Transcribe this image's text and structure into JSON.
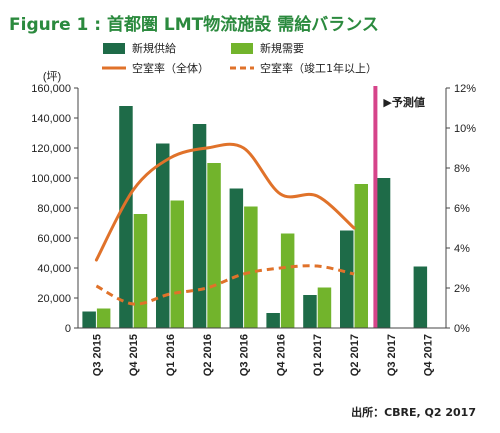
{
  "chart_data": {
    "type": "bar",
    "title": "Figure 1 : 首都圏 LMT物流施設 需給バランス",
    "left_unit": "(坪)",
    "categories": [
      "Q3 2015",
      "Q4 2015",
      "Q1 2016",
      "Q2 2016",
      "Q3 2016",
      "Q4 2016",
      "Q1 2017",
      "Q2 2017",
      "Q3 2017",
      "Q4 2017"
    ],
    "series": [
      {
        "name": "新規供給",
        "kind": "bar",
        "axis": "left",
        "color": "#1e6b48",
        "values": [
          11000,
          148000,
          123000,
          136000,
          93000,
          10000,
          22000,
          65000,
          100000,
          41000
        ]
      },
      {
        "name": "新規需要",
        "kind": "bar",
        "axis": "left",
        "color": "#72b42c",
        "values": [
          13000,
          76000,
          85000,
          110000,
          81000,
          63000,
          27000,
          96000,
          null,
          null
        ]
      },
      {
        "name": "空室率（全体）",
        "kind": "line",
        "style": "solid",
        "axis": "right",
        "color": "#e0722a",
        "values": [
          3.4,
          6.9,
          8.5,
          9.0,
          9.0,
          6.7,
          6.6,
          5.0,
          null,
          null
        ]
      },
      {
        "name": "空室率（竣工1年以上）",
        "kind": "line",
        "style": "dashed",
        "axis": "right",
        "color": "#e0722a",
        "values": [
          2.1,
          1.2,
          1.7,
          2.0,
          2.7,
          3.0,
          3.1,
          2.7,
          null,
          null
        ]
      }
    ],
    "ylim_left": [
      0,
      160000
    ],
    "yticks_left": [
      "0",
      "20,000",
      "40,000",
      "60,000",
      "80,000",
      "100,000",
      "120,000",
      "140,000",
      "160,000"
    ],
    "ylim_right": [
      0,
      12
    ],
    "yticks_right": [
      "0%",
      "2%",
      "4%",
      "6%",
      "8%",
      "10%",
      "12%"
    ],
    "forecast_marker": {
      "after_category": "Q2 2017",
      "label": "▶予測値",
      "color": "#d6448a"
    },
    "legend_position": "top",
    "source": "出所：CBRE, Q2 2017"
  }
}
